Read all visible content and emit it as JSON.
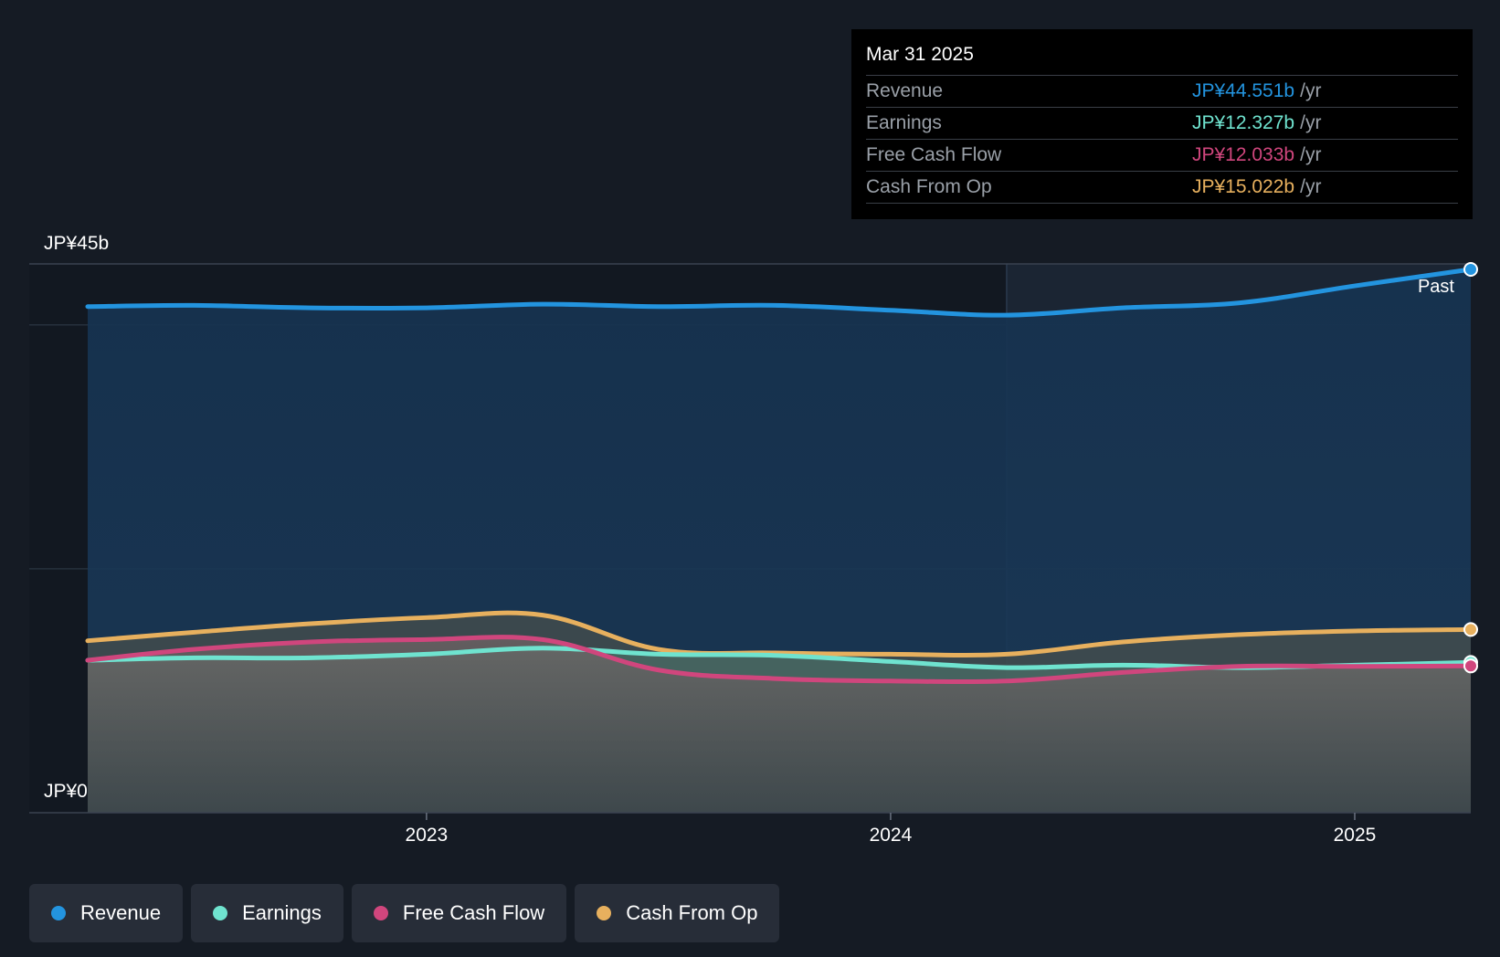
{
  "colors": {
    "background": "#151b24",
    "revenue": "#2394df",
    "earnings": "#6fe3cf",
    "free_cash_flow": "#d0467d",
    "cash_from_op": "#e7b05e"
  },
  "tooltip": {
    "date": "Mar 31 2025",
    "rows": [
      {
        "label": "Revenue",
        "value": "JP¥44.551b",
        "unit": "/yr",
        "color": "#2394df"
      },
      {
        "label": "Earnings",
        "value": "JP¥12.327b",
        "unit": "/yr",
        "color": "#6fe3cf"
      },
      {
        "label": "Free Cash Flow",
        "value": "JP¥12.033b",
        "unit": "/yr",
        "color": "#d0467d"
      },
      {
        "label": "Cash From Op",
        "value": "JP¥15.022b",
        "unit": "/yr",
        "color": "#e7b05e"
      }
    ]
  },
  "past_label": "Past",
  "legend": [
    {
      "label": "Revenue",
      "color": "#2394df"
    },
    {
      "label": "Earnings",
      "color": "#6fe3cf"
    },
    {
      "label": "Free Cash Flow",
      "color": "#d0467d"
    },
    {
      "label": "Cash From Op",
      "color": "#e7b05e"
    }
  ],
  "chart_data": {
    "type": "area",
    "title": "",
    "xlabel": "",
    "ylabel": "",
    "y_tick_labels": [
      "JP¥0",
      "JP¥45b"
    ],
    "x_tick_labels": [
      "2023",
      "2024",
      "2025"
    ],
    "x_ticks": [
      2023.0,
      2024.0,
      2025.0
    ],
    "xlim": [
      2022.27,
      2025.25
    ],
    "ylim": [
      0,
      45
    ],
    "grid": "horizontal",
    "legend_position": "bottom-left",
    "highlight_start": 2024.25,
    "x": [
      2022.27,
      2022.5,
      2022.75,
      2023.0,
      2023.25,
      2023.5,
      2023.75,
      2024.0,
      2024.25,
      2024.5,
      2024.75,
      2025.0,
      2025.25
    ],
    "series": [
      {
        "name": "Revenue",
        "values": [
          41.5,
          41.6,
          41.4,
          41.4,
          41.7,
          41.5,
          41.6,
          41.2,
          40.8,
          41.4,
          41.8,
          43.2,
          44.551
        ]
      },
      {
        "name": "Earnings",
        "values": [
          12.5,
          12.7,
          12.7,
          13.0,
          13.5,
          13.0,
          12.9,
          12.4,
          11.9,
          12.1,
          11.9,
          12.1,
          12.327
        ]
      },
      {
        "name": "Free Cash Flow",
        "values": [
          12.5,
          13.4,
          14.0,
          14.2,
          14.2,
          11.7,
          11.0,
          10.8,
          10.8,
          11.5,
          12.0,
          12.0,
          12.033
        ]
      },
      {
        "name": "Cash From Op",
        "values": [
          14.1,
          14.8,
          15.5,
          16.0,
          16.2,
          13.4,
          13.1,
          13.0,
          13.0,
          14.0,
          14.6,
          14.9,
          15.022
        ]
      }
    ]
  }
}
